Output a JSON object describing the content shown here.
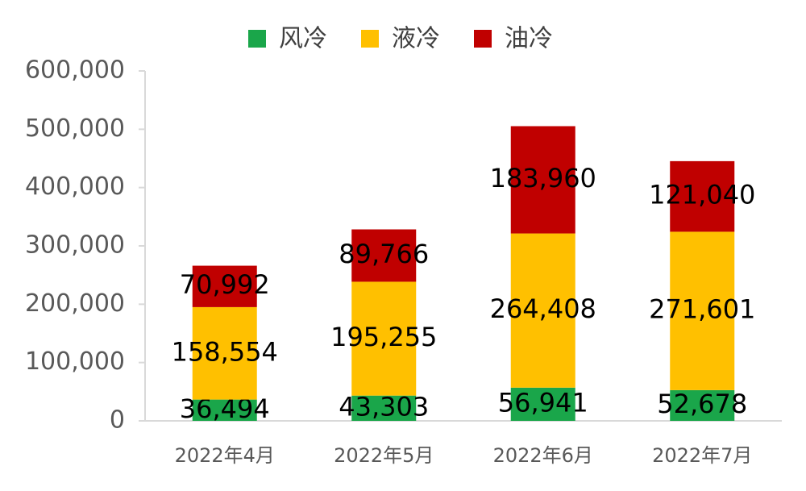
{
  "chart_data": {
    "type": "stacked-bar",
    "categories": [
      "2022年4月",
      "2022年5月",
      "2022年6月",
      "2022年7月"
    ],
    "series": [
      {
        "name": "风冷",
        "color": "#1aa64a",
        "values": [
          36494,
          43303,
          56941,
          52678
        ],
        "value_labels": [
          "36,494",
          "43,303",
          "56,941",
          "52,678"
        ]
      },
      {
        "name": "液冷",
        "color": "#ffc000",
        "values": [
          158554,
          195255,
          264408,
          271601
        ],
        "value_labels": [
          "158,554",
          "195,255",
          "264,408",
          "271,601"
        ]
      },
      {
        "name": "油冷",
        "color": "#c00000",
        "values": [
          70992,
          89766,
          183960,
          121040
        ],
        "value_labels": [
          "70,992",
          "89,766",
          "183,960",
          "121,040"
        ]
      }
    ],
    "ylim": [
      0,
      600000
    ],
    "yticks": [
      0,
      {
        "value": 100000,
        "label": "100,000"
      },
      {
        "value": 200000,
        "label": "200,000"
      },
      {
        "value": 300000,
        "label": "300,000"
      },
      {
        "value": 400000,
        "label": "400,000"
      },
      {
        "value": 500000,
        "label": "500,000"
      },
      {
        "value": 600000,
        "label": "600,000"
      }
    ],
    "grid": false,
    "legend": "top"
  }
}
